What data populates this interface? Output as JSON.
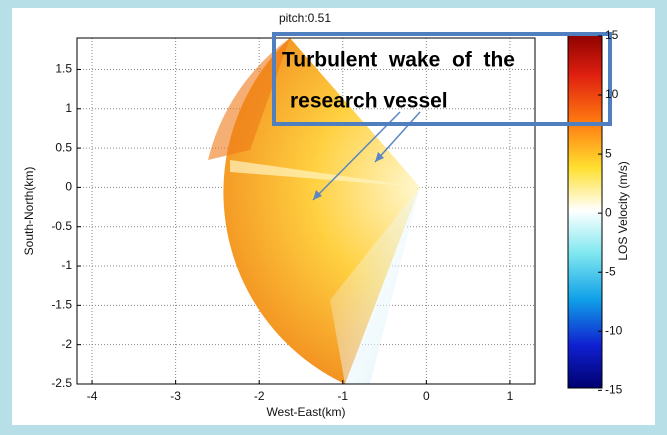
{
  "chart_data": {
    "type": "scan",
    "title": "pitch:0.51",
    "x_label": "West-East(km)",
    "y_label": "South-North(km)",
    "xlim": [
      -4.18,
      1.3
    ],
    "xticks": [
      -4,
      -3,
      -2,
      -1,
      0,
      1
    ],
    "ylim": [
      -2.5,
      1.9
    ],
    "yticks": [
      1.5,
      1,
      0.5,
      0,
      -0.5,
      -1,
      -1.5,
      -2,
      -2.5
    ],
    "colorbar": {
      "label": "LOS Velocity (m/s)",
      "lim": [
        -14.8,
        15.25
      ],
      "ticks": [
        15,
        10,
        5,
        0,
        -5,
        -10,
        -15
      ]
    },
    "annotation": [
      "Turbulent  wake  of  the",
      "research vessel"
    ]
  }
}
